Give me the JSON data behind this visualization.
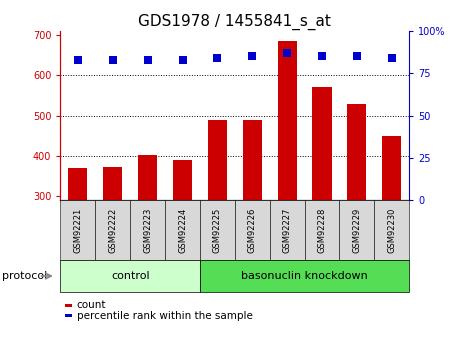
{
  "title": "GDS1978 / 1455841_s_at",
  "categories": [
    "GSM92221",
    "GSM92222",
    "GSM92223",
    "GSM92224",
    "GSM92225",
    "GSM92226",
    "GSM92227",
    "GSM92228",
    "GSM92229",
    "GSM92230"
  ],
  "counts": [
    370,
    372,
    402,
    390,
    490,
    490,
    685,
    570,
    530,
    450
  ],
  "percentiles": [
    83,
    83,
    83,
    83,
    84,
    85,
    87,
    85,
    85,
    84
  ],
  "bar_color": "#cc0000",
  "dot_color": "#0000cc",
  "ylim_left": [
    290,
    710
  ],
  "ylim_right": [
    0,
    100
  ],
  "yticks_left": [
    300,
    400,
    500,
    600,
    700
  ],
  "yticks_right": [
    0,
    25,
    50,
    75,
    100
  ],
  "grid_lines": [
    400,
    500,
    600
  ],
  "control_count": 4,
  "control_label": "control",
  "knockdown_label": "basonuclin knockdown",
  "protocol_label": "protocol",
  "legend_count": "count",
  "legend_percentile": "percentile rank within the sample",
  "bg_plot": "#ffffff",
  "bg_xtick": "#d8d8d8",
  "bg_control": "#ccffcc",
  "bg_knockdown": "#55dd55",
  "title_fontsize": 11,
  "tick_fontsize": 7,
  "bar_width": 0.55,
  "dot_size": 30
}
